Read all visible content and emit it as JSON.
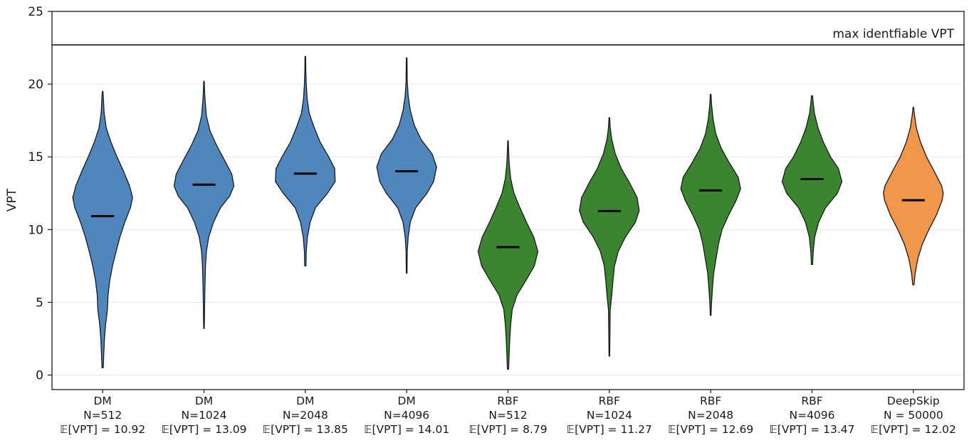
{
  "chart_data": {
    "type": "violin",
    "title": "",
    "xlabel": "",
    "ylabel": "VPT",
    "ylim": [
      -1,
      25
    ],
    "yticks": [
      0,
      5,
      10,
      15,
      20,
      25
    ],
    "grid": "horizontal",
    "reference_line": {
      "y": 22.7,
      "label": "max identfiable VPT"
    },
    "groups": [
      {
        "method": "DM",
        "n_label": "N=512",
        "mean_label": "𝔼[VPT] = 10.92",
        "mean": 10.92,
        "min": 0.5,
        "max": 19.5,
        "color": "#4f86be",
        "profile": [
          [
            0.5,
            0.02
          ],
          [
            1.5,
            0.04
          ],
          [
            2.5,
            0.06
          ],
          [
            3.5,
            0.1
          ],
          [
            4.5,
            0.16
          ],
          [
            5.5,
            0.18
          ],
          [
            6.5,
            0.24
          ],
          [
            7.5,
            0.33
          ],
          [
            8.5,
            0.45
          ],
          [
            9.5,
            0.58
          ],
          [
            10.5,
            0.74
          ],
          [
            11.5,
            0.93
          ],
          [
            12.2,
            1.0
          ],
          [
            13,
            0.9
          ],
          [
            14,
            0.7
          ],
          [
            15,
            0.48
          ],
          [
            16,
            0.28
          ],
          [
            17,
            0.12
          ],
          [
            18,
            0.05
          ],
          [
            19,
            0.025
          ],
          [
            19.5,
            0.01
          ]
        ]
      },
      {
        "method": "DM",
        "n_label": "N=1024",
        "mean_label": "𝔼[VPT] = 13.09",
        "mean": 13.09,
        "min": 3.2,
        "max": 20.2,
        "color": "#4f86be",
        "profile": [
          [
            3.2,
            0.01
          ],
          [
            4.5,
            0.02
          ],
          [
            6,
            0.03
          ],
          [
            7.5,
            0.05
          ],
          [
            8.5,
            0.08
          ],
          [
            9.5,
            0.16
          ],
          [
            10.5,
            0.32
          ],
          [
            11.5,
            0.55
          ],
          [
            12.3,
            0.86
          ],
          [
            13,
            1.0
          ],
          [
            13.8,
            0.93
          ],
          [
            14.8,
            0.68
          ],
          [
            15.8,
            0.42
          ],
          [
            16.8,
            0.2
          ],
          [
            17.8,
            0.08
          ],
          [
            18.8,
            0.04
          ],
          [
            19.5,
            0.02
          ],
          [
            20.2,
            0.01
          ]
        ]
      },
      {
        "method": "DM",
        "n_label": "N=2048",
        "mean_label": "𝔼[VPT] = 13.85",
        "mean": 13.85,
        "min": 7.5,
        "max": 21.9,
        "color": "#4f86be",
        "profile": [
          [
            7.5,
            0.02
          ],
          [
            8.5,
            0.03
          ],
          [
            9.5,
            0.07
          ],
          [
            10.5,
            0.16
          ],
          [
            11.5,
            0.34
          ],
          [
            12.5,
            0.74
          ],
          [
            13.3,
            1.0
          ],
          [
            14.2,
            0.98
          ],
          [
            15,
            0.78
          ],
          [
            16,
            0.5
          ],
          [
            17,
            0.3
          ],
          [
            18,
            0.13
          ],
          [
            19,
            0.06
          ],
          [
            20,
            0.03
          ],
          [
            21,
            0.015
          ],
          [
            21.9,
            0.01
          ]
        ]
      },
      {
        "method": "DM",
        "n_label": "N=4096",
        "mean_label": "𝔼[VPT] = 14.01",
        "mean": 14.01,
        "min": 7.0,
        "max": 21.8,
        "color": "#4f86be",
        "profile": [
          [
            7,
            0.01
          ],
          [
            8.5,
            0.02
          ],
          [
            9.5,
            0.05
          ],
          [
            10.5,
            0.12
          ],
          [
            11.5,
            0.3
          ],
          [
            12.5,
            0.68
          ],
          [
            13.3,
            0.9
          ],
          [
            14.3,
            1.0
          ],
          [
            15.2,
            0.85
          ],
          [
            16.2,
            0.48
          ],
          [
            17.2,
            0.25
          ],
          [
            18.2,
            0.12
          ],
          [
            19.2,
            0.05
          ],
          [
            20.2,
            0.02
          ],
          [
            21,
            0.015
          ],
          [
            21.8,
            0.01
          ]
        ]
      },
      {
        "method": "RBF",
        "n_label": "N=512",
        "mean_label": "𝔼[VPT] = 8.79",
        "mean": 8.79,
        "min": 0.4,
        "max": 16.1,
        "color": "#3b8530",
        "profile": [
          [
            0.4,
            0.02
          ],
          [
            1.5,
            0.04
          ],
          [
            2.5,
            0.06
          ],
          [
            3.5,
            0.09
          ],
          [
            4.5,
            0.14
          ],
          [
            5.5,
            0.3
          ],
          [
            6.5,
            0.6
          ],
          [
            7.5,
            0.88
          ],
          [
            8.5,
            1.0
          ],
          [
            9.5,
            0.86
          ],
          [
            10.5,
            0.62
          ],
          [
            11.5,
            0.4
          ],
          [
            12.5,
            0.2
          ],
          [
            13.5,
            0.09
          ],
          [
            14.5,
            0.04
          ],
          [
            15.5,
            0.02
          ],
          [
            16.1,
            0.01
          ]
        ]
      },
      {
        "method": "RBF",
        "n_label": "N=1024",
        "mean_label": "𝔼[VPT] = 11.27",
        "mean": 11.27,
        "min": 1.3,
        "max": 17.7,
        "color": "#3b8530",
        "profile": [
          [
            1.3,
            0.01
          ],
          [
            3,
            0.02
          ],
          [
            4.5,
            0.03
          ],
          [
            5.5,
            0.08
          ],
          [
            6.5,
            0.12
          ],
          [
            7.5,
            0.17
          ],
          [
            8.5,
            0.3
          ],
          [
            9.5,
            0.54
          ],
          [
            10.5,
            0.87
          ],
          [
            11.3,
            1.0
          ],
          [
            12.2,
            0.93
          ],
          [
            13.2,
            0.68
          ],
          [
            14.2,
            0.4
          ],
          [
            15.2,
            0.2
          ],
          [
            16.2,
            0.08
          ],
          [
            17,
            0.03
          ],
          [
            17.7,
            0.01
          ]
        ]
      },
      {
        "method": "RBF",
        "n_label": "N=2048",
        "mean_label": "𝔼[VPT] = 12.69",
        "mean": 12.69,
        "min": 4.1,
        "max": 19.3,
        "color": "#3b8530",
        "profile": [
          [
            4.1,
            0.01
          ],
          [
            5,
            0.03
          ],
          [
            6,
            0.06
          ],
          [
            7,
            0.1
          ],
          [
            8,
            0.18
          ],
          [
            9,
            0.26
          ],
          [
            10,
            0.38
          ],
          [
            11,
            0.6
          ],
          [
            12,
            0.85
          ],
          [
            12.8,
            1.0
          ],
          [
            13.6,
            0.92
          ],
          [
            14.6,
            0.62
          ],
          [
            15.6,
            0.35
          ],
          [
            16.6,
            0.17
          ],
          [
            17.6,
            0.08
          ],
          [
            18.6,
            0.03
          ],
          [
            19.3,
            0.01
          ]
        ]
      },
      {
        "method": "RBF",
        "n_label": "N=4096",
        "mean_label": "𝔼[VPT] = 13.47",
        "mean": 13.47,
        "min": 7.6,
        "max": 19.2,
        "color": "#3b8530",
        "profile": [
          [
            7.6,
            0.02
          ],
          [
            8.5,
            0.04
          ],
          [
            9.5,
            0.09
          ],
          [
            10.5,
            0.22
          ],
          [
            11.5,
            0.45
          ],
          [
            12.5,
            0.85
          ],
          [
            13.3,
            1.0
          ],
          [
            14.2,
            0.88
          ],
          [
            15,
            0.62
          ],
          [
            16,
            0.38
          ],
          [
            17,
            0.2
          ],
          [
            18,
            0.08
          ],
          [
            18.7,
            0.04
          ],
          [
            19.2,
            0.02
          ]
        ]
      },
      {
        "method": "DeepSkip",
        "n_label": "N = 50000",
        "mean_label": "𝔼[VPT] = 12.02",
        "mean": 12.02,
        "min": 6.2,
        "max": 18.4,
        "color": "#f0974a",
        "profile": [
          [
            6.2,
            0.02
          ],
          [
            7,
            0.06
          ],
          [
            8,
            0.15
          ],
          [
            9,
            0.3
          ],
          [
            10,
            0.52
          ],
          [
            11,
            0.77
          ],
          [
            12,
            0.96
          ],
          [
            12.5,
            1.0
          ],
          [
            13,
            0.95
          ],
          [
            14,
            0.7
          ],
          [
            15,
            0.44
          ],
          [
            16,
            0.24
          ],
          [
            17,
            0.1
          ],
          [
            18,
            0.03
          ],
          [
            18.4,
            0.01
          ]
        ]
      }
    ]
  }
}
